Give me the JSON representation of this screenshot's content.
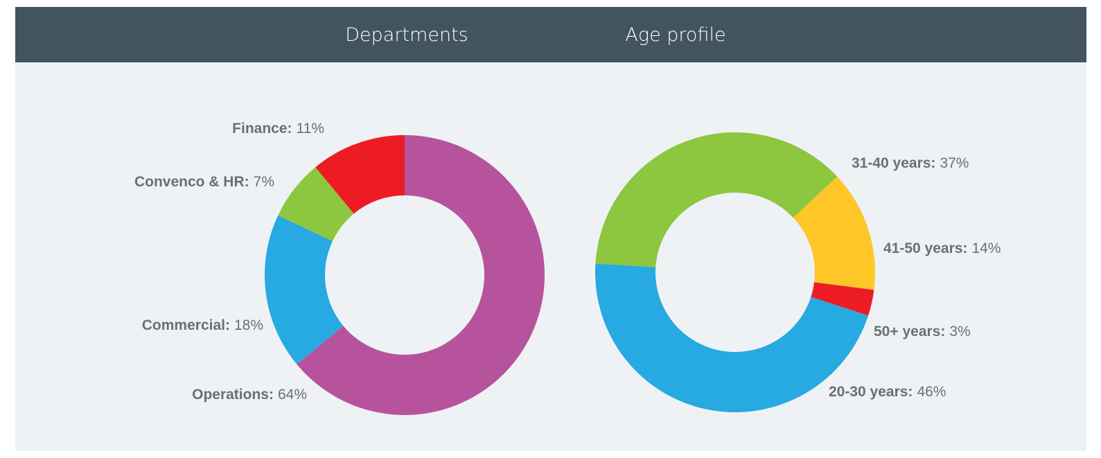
{
  "chart_data": [
    {
      "type": "donut",
      "title": "Departments",
      "categories": [
        "Operations:",
        "Commercial:",
        "Convenco & HR:",
        "Finance:"
      ],
      "values": [
        64,
        18,
        7,
        11
      ],
      "value_labels": [
        "64%",
        "18%",
        "7%",
        "11%"
      ],
      "colors": [
        "#b7539d",
        "#27a9e1",
        "#8dc63f",
        "#ed1c24"
      ]
    },
    {
      "type": "donut",
      "title": "Age profile",
      "categories": [
        "20-30 years:",
        "31-40 years:",
        "41-50 years:",
        "50+ years:"
      ],
      "values": [
        46,
        37,
        14,
        3
      ],
      "value_labels": [
        "46%",
        "37%",
        "14%",
        "3%"
      ],
      "colors": [
        "#27a9e1",
        "#8dc63f",
        "#ffc627",
        "#ed1c24"
      ]
    }
  ]
}
